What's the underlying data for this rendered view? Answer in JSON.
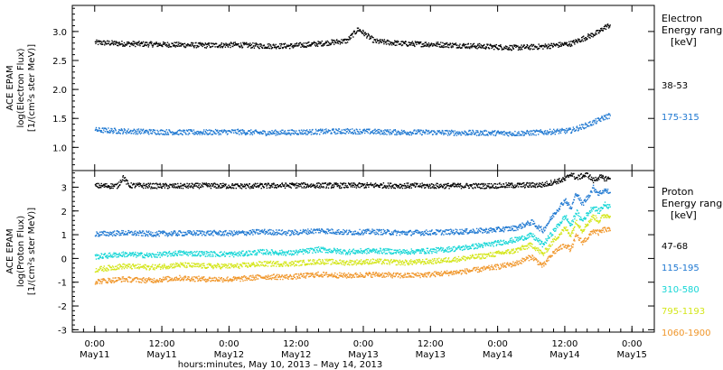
{
  "chart_data": [
    {
      "type": "scatter",
      "panel": "electron",
      "ylabel": [
        "ACE EPAM",
        "log(Electron Flux)",
        "[1/(cm²s ster MeV)]"
      ],
      "ylim": [
        0.6,
        3.45
      ],
      "yticks": [
        1.0,
        1.5,
        2.0,
        2.5,
        3.0
      ],
      "ytick_labels": [
        "1.0",
        "1.5",
        "2.0",
        "2.5",
        "3.0"
      ],
      "legend_title": [
        "Electron",
        "Energy ranges",
        "[keV]"
      ],
      "series": [
        {
          "name": "38-53",
          "color": "#000000",
          "x": [
            0,
            5,
            10,
            15,
            20,
            25,
            30,
            35,
            40,
            45,
            47,
            50,
            55,
            60,
            65,
            70,
            75,
            80,
            85,
            88,
            90,
            91,
            92
          ],
          "y": [
            2.82,
            2.8,
            2.79,
            2.78,
            2.77,
            2.78,
            2.76,
            2.76,
            2.8,
            2.85,
            3.05,
            2.84,
            2.8,
            2.79,
            2.77,
            2.75,
            2.73,
            2.75,
            2.8,
            2.92,
            3.0,
            3.08,
            3.12
          ]
        },
        {
          "name": "175-315",
          "color": "#1f78d1",
          "x": [
            0,
            5,
            10,
            15,
            20,
            25,
            30,
            35,
            40,
            45,
            50,
            55,
            60,
            65,
            70,
            75,
            80,
            85,
            88,
            90,
            91,
            92
          ],
          "y": [
            1.31,
            1.29,
            1.28,
            1.27,
            1.27,
            1.28,
            1.26,
            1.27,
            1.28,
            1.29,
            1.28,
            1.27,
            1.27,
            1.26,
            1.26,
            1.25,
            1.27,
            1.3,
            1.4,
            1.48,
            1.53,
            1.56
          ]
        }
      ]
    },
    {
      "type": "scatter",
      "panel": "proton",
      "ylabel": [
        "ACE EPAM",
        "log(Proton Flux)",
        "[1/(cm²s ster MeV)]"
      ],
      "ylim": [
        -3.1,
        3.7
      ],
      "yticks": [
        -3,
        -2,
        -1,
        0,
        1,
        2,
        3
      ],
      "ytick_labels": [
        "-3",
        "-2",
        "-1",
        "0",
        "1",
        "2",
        "3"
      ],
      "legend_title": [
        "Proton",
        "Energy ranges",
        "[keV]"
      ],
      "xlim": [
        -4,
        100
      ],
      "xticks": [
        0,
        12,
        24,
        36,
        48,
        60,
        72,
        84,
        96
      ],
      "xtick_labels": [
        "0:00",
        "12:00",
        "0:00",
        "12:00",
        "0:00",
        "12:00",
        "0:00",
        "12:00",
        "0:00"
      ],
      "xtick_dates": [
        "May11",
        "May11",
        "May12",
        "May12",
        "May13",
        "May13",
        "May14",
        "May14",
        "May15"
      ],
      "xlabel": "hours:minutes, May 10, 2013 – May 14, 2013",
      "series": [
        {
          "name": "47-68",
          "color": "#000000",
          "x": [
            0,
            4,
            5,
            6,
            10,
            15,
            20,
            25,
            30,
            35,
            40,
            45,
            50,
            55,
            60,
            65,
            70,
            75,
            80,
            82,
            84,
            85,
            86,
            87,
            88,
            89,
            90,
            91,
            92
          ],
          "y": [
            3.08,
            3.08,
            3.45,
            3.1,
            3.08,
            3.07,
            3.09,
            3.07,
            3.08,
            3.1,
            3.1,
            3.09,
            3.1,
            3.09,
            3.08,
            3.08,
            3.08,
            3.1,
            3.12,
            3.25,
            3.35,
            3.6,
            3.4,
            3.5,
            3.55,
            3.3,
            3.45,
            3.4,
            3.38
          ]
        },
        {
          "name": "115-195",
          "color": "#1f78d1",
          "x": [
            0,
            5,
            10,
            15,
            20,
            25,
            30,
            35,
            40,
            45,
            50,
            55,
            60,
            65,
            70,
            75,
            78,
            80,
            82,
            84,
            85,
            86,
            87,
            88,
            89,
            90,
            91,
            92
          ],
          "y": [
            1.05,
            1.1,
            1.06,
            1.08,
            1.1,
            1.08,
            1.15,
            1.1,
            1.2,
            1.12,
            1.15,
            1.1,
            1.12,
            1.15,
            1.2,
            1.3,
            1.55,
            1.2,
            1.9,
            2.5,
            2.1,
            2.8,
            2.3,
            2.6,
            3.0,
            2.75,
            2.9,
            2.8
          ]
        },
        {
          "name": "310-580",
          "color": "#16d6d6",
          "x": [
            0,
            5,
            10,
            15,
            20,
            25,
            30,
            35,
            40,
            45,
            50,
            55,
            60,
            65,
            70,
            75,
            78,
            80,
            82,
            84,
            85,
            86,
            87,
            88,
            89,
            90,
            91,
            92
          ],
          "y": [
            0.1,
            0.2,
            0.15,
            0.25,
            0.22,
            0.2,
            0.3,
            0.25,
            0.4,
            0.3,
            0.35,
            0.3,
            0.35,
            0.45,
            0.6,
            0.8,
            1.0,
            0.6,
            1.2,
            1.8,
            1.4,
            2.0,
            1.6,
            1.9,
            2.2,
            2.0,
            2.3,
            2.2
          ]
        },
        {
          "name": "795-1193",
          "color": "#d4e61a",
          "x": [
            0,
            5,
            10,
            15,
            20,
            25,
            30,
            35,
            40,
            45,
            50,
            55,
            60,
            65,
            70,
            75,
            78,
            80,
            82,
            84,
            85,
            86,
            87,
            88,
            89,
            90,
            91,
            92
          ],
          "y": [
            -0.45,
            -0.3,
            -0.35,
            -0.25,
            -0.3,
            -0.3,
            -0.2,
            -0.2,
            -0.1,
            -0.15,
            -0.1,
            -0.15,
            -0.1,
            0.0,
            0.15,
            0.35,
            0.6,
            0.2,
            0.8,
            1.3,
            1.0,
            1.6,
            1.2,
            1.5,
            1.8,
            1.6,
            1.85,
            1.8
          ]
        },
        {
          "name": "1060-1900",
          "color": "#f0962a",
          "x": [
            0,
            5,
            10,
            15,
            20,
            25,
            30,
            35,
            40,
            45,
            50,
            55,
            60,
            65,
            70,
            75,
            78,
            80,
            82,
            84,
            85,
            86,
            87,
            88,
            89,
            90,
            91,
            92
          ],
          "y": [
            -0.95,
            -0.85,
            -0.9,
            -0.8,
            -0.85,
            -0.85,
            -0.75,
            -0.75,
            -0.65,
            -0.7,
            -0.65,
            -0.7,
            -0.65,
            -0.55,
            -0.4,
            -0.2,
            0.1,
            -0.3,
            0.3,
            0.6,
            0.4,
            1.0,
            0.7,
            0.9,
            1.2,
            1.1,
            1.25,
            1.2
          ]
        }
      ]
    }
  ]
}
